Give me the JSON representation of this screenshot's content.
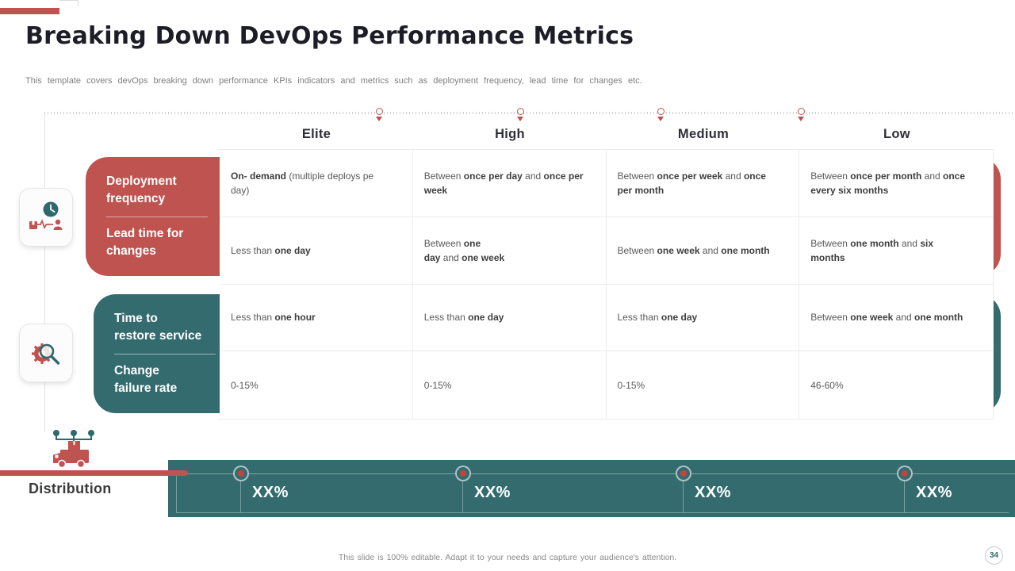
{
  "slide": {
    "title": "Breaking Down DevOps Performance Metrics",
    "subtitle": "This template covers devOps breaking down performance KPIs indicators and metrics such as deployment frequency, lead time for changes etc.",
    "footer": "This slide is 100% editable. Adapt it to your needs and capture your audience's attention.",
    "page_number": "34"
  },
  "colors": {
    "accent_red": "#BF534F",
    "accent_teal": "#346B6F",
    "marker_dot_red": "#C3453A",
    "title_text": "#1D1D27",
    "body_text": "#5A5A5A"
  },
  "columns": [
    "Elite",
    "High",
    "Medium",
    "Low"
  ],
  "row_groups": [
    {
      "color": "#BF534F",
      "labels": [
        "Deployment\nfrequency",
        "Lead time for\nchanges"
      ]
    },
    {
      "color": "#346B6F",
      "labels": [
        "Time to\nrestore service",
        "Change\nfailure rate"
      ]
    }
  ],
  "icons": [
    {
      "name": "clock-monitoring-icon"
    },
    {
      "name": "gear-magnifier-icon"
    },
    {
      "name": "distribution-truck-icon"
    }
  ],
  "table": {
    "rows": [
      {
        "metric": "Deployment frequency",
        "cells": [
          [
            {
              "t": "On- demand",
              "b": true
            },
            {
              "t": " (multiple deploys pe\nday)",
              "b": false
            }
          ],
          [
            {
              "t": "Between ",
              "b": false
            },
            {
              "t": "once per day",
              "b": true
            },
            {
              "t": " and ",
              "b": false
            },
            {
              "t": "once per\nweek",
              "b": true
            }
          ],
          [
            {
              "t": "Between ",
              "b": false
            },
            {
              "t": "once per week",
              "b": true
            },
            {
              "t": " and ",
              "b": false
            },
            {
              "t": "once\nper month",
              "b": true
            }
          ],
          [
            {
              "t": "Between ",
              "b": false
            },
            {
              "t": "once per month",
              "b": true
            },
            {
              "t": " and ",
              "b": false
            },
            {
              "t": "once\nevery six months",
              "b": true
            }
          ]
        ]
      },
      {
        "metric": "Lead time for changes",
        "cells": [
          [
            {
              "t": "Less than ",
              "b": false
            },
            {
              "t": "one day",
              "b": true
            }
          ],
          [
            {
              "t": "Between ",
              "b": false
            },
            {
              "t": "one\nday",
              "b": true
            },
            {
              "t": " and ",
              "b": false
            },
            {
              "t": "one week",
              "b": true
            }
          ],
          [
            {
              "t": "Between ",
              "b": false
            },
            {
              "t": "one week",
              "b": true
            },
            {
              "t": " and ",
              "b": false
            },
            {
              "t": "one month",
              "b": true
            }
          ],
          [
            {
              "t": "Between ",
              "b": false
            },
            {
              "t": "one month",
              "b": true
            },
            {
              "t": " and ",
              "b": false
            },
            {
              "t": "six\nmonths",
              "b": true
            }
          ]
        ]
      },
      {
        "metric": "Time to restore service",
        "cells": [
          [
            {
              "t": "Less than ",
              "b": false
            },
            {
              "t": "one hour",
              "b": true
            }
          ],
          [
            {
              "t": "Less than ",
              "b": false
            },
            {
              "t": "one day",
              "b": true
            }
          ],
          [
            {
              "t": "Less than ",
              "b": false
            },
            {
              "t": "one day",
              "b": true
            }
          ],
          [
            {
              "t": "Between ",
              "b": false
            },
            {
              "t": "one week",
              "b": true
            },
            {
              "t": " and ",
              "b": false
            },
            {
              "t": "one month",
              "b": true
            }
          ]
        ]
      },
      {
        "metric": "Change failure rate",
        "cells": [
          [
            {
              "t": "0-15%",
              "b": false
            }
          ],
          [
            {
              "t": "0-15%",
              "b": false
            }
          ],
          [
            {
              "t": "0-15%",
              "b": false
            }
          ],
          [
            {
              "t": "46-60%",
              "b": false
            }
          ]
        ]
      }
    ]
  },
  "distribution": {
    "label": "Distribution",
    "values": [
      "XX%",
      "XX%",
      "XX%",
      "XX%"
    ]
  }
}
